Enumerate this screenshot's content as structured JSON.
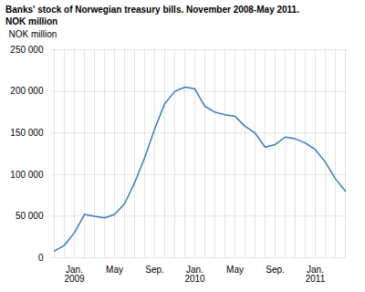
{
  "chart_data": {
    "type": "line",
    "title": "Banks' stock of Norwegian treasury bills. November 2008-May 2011.",
    "subtitle": "NOK million",
    "ylabel": "NOK million",
    "categories": [
      null,
      null,
      "Jan.\n2009",
      null,
      null,
      null,
      "May",
      null,
      null,
      null,
      "Sep.",
      null,
      null,
      null,
      "Jan.\n2010",
      null,
      null,
      null,
      "May",
      null,
      null,
      null,
      "Sep.",
      null,
      null,
      null,
      "Jan.\n2011",
      null,
      null,
      null
    ],
    "values": [
      8000,
      15000,
      30000,
      52000,
      50000,
      48000,
      52000,
      65000,
      90000,
      120000,
      155000,
      185000,
      200000,
      205000,
      203000,
      182000,
      175000,
      172000,
      170000,
      158000,
      150000,
      133000,
      136000,
      145000,
      143000,
      138000,
      130000,
      115000,
      95000,
      80000
    ],
    "color": "#3a7abf",
    "ylim": [
      0,
      250000
    ],
    "yticks": [
      0,
      {
        "value": 50000,
        "label": "50 000"
      },
      {
        "value": 100000,
        "label": "100 000"
      },
      {
        "value": 150000,
        "label": "150 000"
      },
      {
        "value": 200000,
        "label": "200 000"
      },
      {
        "value": 250000,
        "label": "250 000"
      }
    ],
    "grid": true
  }
}
